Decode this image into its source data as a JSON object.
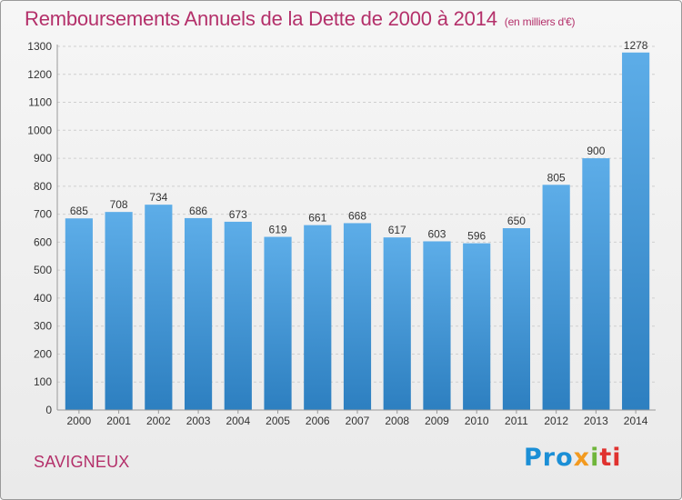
{
  "header": {
    "title": "Remboursements Annuels de la Dette de 2000 à 2014",
    "unit": "(en milliers d'€)"
  },
  "footer": {
    "commune": "SAVIGNEUX",
    "logo_parts": [
      "Pro",
      "x",
      "i",
      "ti"
    ]
  },
  "colors": {
    "title": "#b4306a",
    "bar_light": "#5dade8",
    "bar_dark": "#2d7fc0",
    "logo_blue": "#1b8fd6",
    "logo_orange": "#f39a1f",
    "logo_green": "#6fb63b",
    "logo_red": "#e0322f"
  },
  "chart_data": {
    "type": "bar",
    "title": "Remboursements Annuels de la Dette de 2000 à 2014",
    "xlabel": "",
    "ylabel": "",
    "categories": [
      "2000",
      "2001",
      "2002",
      "2003",
      "2004",
      "2005",
      "2006",
      "2007",
      "2008",
      "2009",
      "2010",
      "2011",
      "2012",
      "2013",
      "2014"
    ],
    "values": [
      685,
      708,
      734,
      686,
      673,
      619,
      661,
      668,
      617,
      603,
      596,
      650,
      805,
      900,
      1278
    ],
    "data_labels": [
      "685",
      "708",
      "734",
      "686",
      "673",
      "619",
      "661",
      "668",
      "617",
      "603",
      "596",
      "650",
      "805",
      "900",
      "1278"
    ],
    "ylim": [
      0,
      1300
    ],
    "yticks": [
      0,
      100,
      200,
      300,
      400,
      500,
      600,
      700,
      800,
      900,
      1000,
      1100,
      1200,
      1300
    ],
    "grid": true,
    "legend": "none"
  }
}
